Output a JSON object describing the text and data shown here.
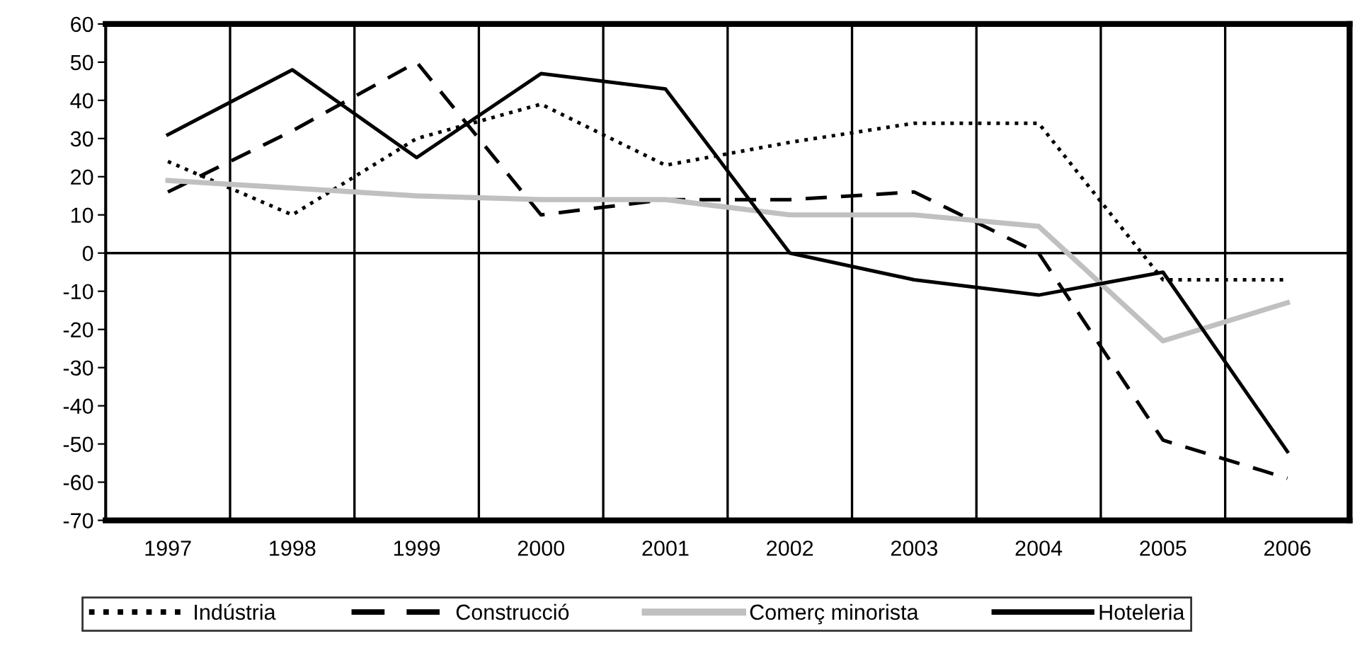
{
  "chart_data": {
    "type": "line",
    "categories": [
      "1997",
      "1998",
      "1999",
      "2000",
      "2001",
      "2002",
      "2003",
      "2004",
      "2005",
      "2006"
    ],
    "series": [
      {
        "name": "Indústria",
        "color": "#000000",
        "line_style": "dotted",
        "values": [
          24,
          10,
          30,
          39,
          23,
          29,
          34,
          34,
          -7,
          -7
        ]
      },
      {
        "name": "Construcció",
        "color": "#000000",
        "line_style": "dashed",
        "values": [
          16,
          32,
          50,
          10,
          14,
          14,
          16,
          0,
          -49,
          -59
        ]
      },
      {
        "name": "Comerç minorista",
        "color": "#c0c0c0",
        "line_style": "solid",
        "values": [
          19,
          17,
          15,
          14,
          14,
          10,
          10,
          7,
          -23,
          -13
        ]
      },
      {
        "name": "Hoteleria",
        "color": "#000000",
        "line_style": "solid",
        "values": [
          31,
          48,
          25,
          47,
          43,
          0,
          -7,
          -11,
          -5,
          -52
        ]
      }
    ],
    "ylim": [
      -70,
      60
    ],
    "yticks": [
      -70,
      -60,
      -50,
      -40,
      -30,
      -20,
      -10,
      0,
      10,
      20,
      30,
      40,
      50,
      60
    ],
    "ref_lines": [
      {
        "axis": "y",
        "value": 0,
        "color": "#000000"
      }
    ],
    "grid": "x",
    "legend": "bottom",
    "marker": "none"
  }
}
